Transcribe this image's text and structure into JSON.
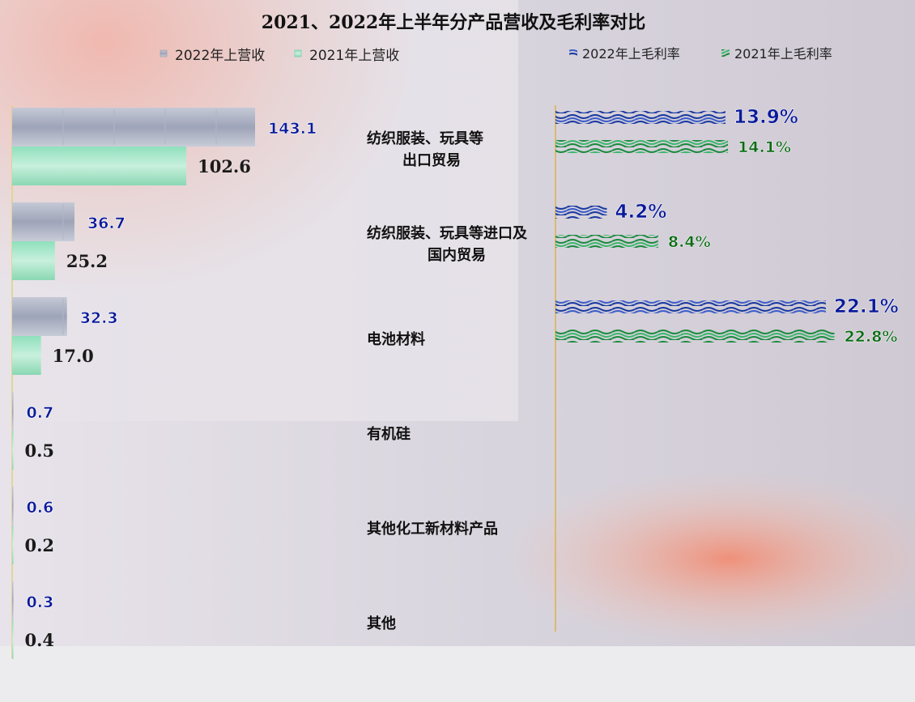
{
  "colors": {
    "revenue_2022": "#9ea4b8",
    "revenue_2021": "#7fd8b0",
    "margin_2022": "#1a3aa0",
    "margin_2021": "#1a8a3e",
    "label_2022": "#0a1a9a",
    "label_2021_revenue": "#1a1a1a",
    "label_2021_margin": "#0a6a14"
  },
  "chart_data": {
    "type": "bar",
    "title": "2021、2022年上半年分产品营收及毛利率对比",
    "categories": [
      "纺织服装、玩具等出口贸易",
      "纺织服装、玩具等进口及国内贸易",
      "电池材料",
      "有机硅",
      "其他化工新材料产品",
      "其他"
    ],
    "category_lines": [
      [
        "纺织服装、玩具等",
        "出口贸易"
      ],
      [
        "纺织服装、玩具等进口及",
        "国内贸易"
      ],
      [
        "电池材料"
      ],
      [
        "有机硅"
      ],
      [
        "其他化工新材料产品"
      ],
      [
        "其他"
      ]
    ],
    "revenue": {
      "series": [
        {
          "name": "2022年上营收",
          "values": [
            143.1,
            36.7,
            32.3,
            0.7,
            0.6,
            0.3
          ],
          "labels": [
            "143.1",
            "36.7",
            "32.3",
            "0.7",
            "0.6",
            "0.3"
          ]
        },
        {
          "name": "2021年上营收",
          "values": [
            102.6,
            25.2,
            17.0,
            0.5,
            0.2,
            0.4
          ],
          "labels": [
            "102.6",
            "25.2",
            "17.0",
            "0.5",
            "0.2",
            "0.4"
          ]
        }
      ]
    },
    "margin": {
      "series": [
        {
          "name": "2022年上毛利率",
          "values": [
            13.9,
            4.2,
            22.1,
            null,
            null,
            null
          ],
          "labels": [
            "13.9%",
            "4.2%",
            "22.1%"
          ]
        },
        {
          "name": "2021年上毛利率",
          "values": [
            14.1,
            8.4,
            22.8,
            null,
            null,
            null
          ],
          "labels": [
            "14.1%",
            "8.4%",
            "22.8%"
          ]
        }
      ]
    },
    "legend": {
      "revenue": [
        "2022年上营收",
        "2021年上营收"
      ],
      "margin": [
        "2022年上毛利率",
        "2021年上毛利率"
      ],
      "position": "top"
    },
    "grid": false
  }
}
